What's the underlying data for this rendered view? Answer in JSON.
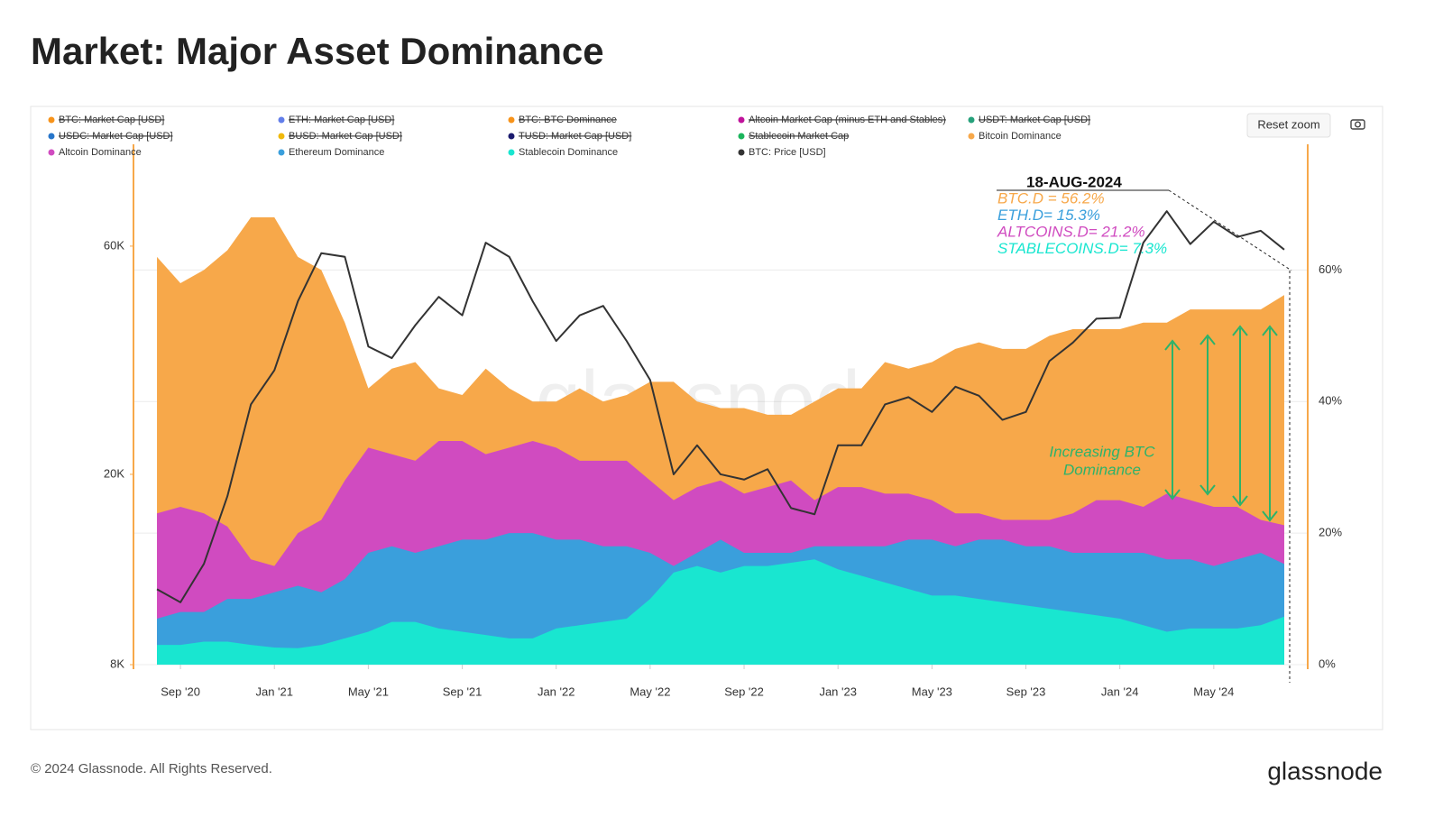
{
  "header": {
    "title": "Market: Major Asset Dominance"
  },
  "footer": {
    "copyright": "© 2024 Glassnode. All Rights Reserved.",
    "logo": "glassnode"
  },
  "toolbar": {
    "reset_zoom": "Reset zoom"
  },
  "chart_data": {
    "type": "area",
    "watermark": "glassnode",
    "x": [
      "2020-08",
      "2020-09",
      "2020-10",
      "2020-11",
      "2020-12",
      "2021-01",
      "2021-02",
      "2021-03",
      "2021-04",
      "2021-05",
      "2021-06",
      "2021-07",
      "2021-08",
      "2021-09",
      "2021-10",
      "2021-11",
      "2021-12",
      "2022-01",
      "2022-02",
      "2022-03",
      "2022-04",
      "2022-05",
      "2022-06",
      "2022-07",
      "2022-08",
      "2022-09",
      "2022-10",
      "2022-11",
      "2022-12",
      "2023-01",
      "2023-02",
      "2023-03",
      "2023-04",
      "2023-05",
      "2023-06",
      "2023-07",
      "2023-08",
      "2023-09",
      "2023-10",
      "2023-11",
      "2023-12",
      "2024-01",
      "2024-02",
      "2024-03",
      "2024-04",
      "2024-05",
      "2024-06",
      "2024-07",
      "2024-08"
    ],
    "xlim": [
      "2020-07",
      "2024-09"
    ],
    "xticks": [
      {
        "value": "2020-09",
        "label": "Sep '20"
      },
      {
        "value": "2021-01",
        "label": "Jan '21"
      },
      {
        "value": "2021-05",
        "label": "May '21"
      },
      {
        "value": "2021-09",
        "label": "Sep '21"
      },
      {
        "value": "2022-01",
        "label": "Jan '22"
      },
      {
        "value": "2022-05",
        "label": "May '22"
      },
      {
        "value": "2022-09",
        "label": "Sep '22"
      },
      {
        "value": "2023-01",
        "label": "Jan '23"
      },
      {
        "value": "2023-05",
        "label": "May '23"
      },
      {
        "value": "2023-09",
        "label": "Sep '23"
      },
      {
        "value": "2024-01",
        "label": "Jan '24"
      },
      {
        "value": "2024-05",
        "label": "May '24"
      }
    ],
    "ylim": [
      8000,
      86000
    ],
    "yscale": "log",
    "yticks": [
      {
        "value": 8000,
        "label": "8K"
      },
      {
        "value": 20000,
        "label": "20K"
      },
      {
        "value": 60000,
        "label": "60K"
      }
    ],
    "y2lim": [
      0,
      75
    ],
    "y2ticks": [
      {
        "value": 0,
        "label": "0%"
      },
      {
        "value": 20,
        "label": "20%"
      },
      {
        "value": 40,
        "label": "40%"
      },
      {
        "value": 60,
        "label": "60%"
      }
    ],
    "grid": true,
    "hidden_series": [
      {
        "name": "BTC: Market Cap [USD]",
        "color": "#f7931a"
      },
      {
        "name": "ETH: Market Cap [USD]",
        "color": "#627eea"
      },
      {
        "name": "BTC: BTC Dominance",
        "color": "#f7931a"
      },
      {
        "name": "Altcoin Market Cap (minus ETH and Stables)",
        "color": "#c0139b"
      },
      {
        "name": "USDT: Market Cap [USD]",
        "color": "#26a17b"
      },
      {
        "name": "USDC: Market Cap [USD]",
        "color": "#2775ca"
      },
      {
        "name": "BUSD: Market Cap [USD]",
        "color": "#f0b90b"
      },
      {
        "name": "TUSD: Market Cap [USD]",
        "color": "#1a1a6e"
      },
      {
        "name": "Stablecoin Market Cap",
        "color": "#1bb55c"
      }
    ],
    "series": [
      {
        "name": "Bitcoin Dominance",
        "color": "#f7a84a",
        "axis": "y2",
        "values": [
          62,
          58,
          60,
          63,
          68,
          68,
          62,
          60,
          52,
          42,
          45,
          46,
          42,
          41,
          45,
          42,
          40,
          40,
          42,
          40,
          41,
          43,
          43,
          40,
          39,
          39,
          38,
          38,
          40,
          42,
          42,
          46,
          45,
          46,
          48,
          49,
          48,
          48,
          50,
          51,
          51,
          51,
          52,
          52,
          54,
          54,
          54,
          54,
          56.2
        ]
      },
      {
        "name": "Altcoin Dominance",
        "color": "#d04bc0",
        "axis": "y2",
        "values": [
          23,
          24,
          23,
          21,
          16,
          15,
          20,
          22,
          28,
          33,
          32,
          31,
          34,
          34,
          32,
          33,
          34,
          33,
          31,
          31,
          31,
          28,
          25,
          27,
          28,
          26,
          27,
          28,
          25,
          27,
          27,
          26,
          26,
          25,
          23,
          23,
          22,
          22,
          22,
          23,
          25,
          25,
          24,
          26,
          25,
          24,
          24,
          22,
          21.2
        ]
      },
      {
        "name": "Ethereum Dominance",
        "color": "#3a9fdc",
        "axis": "y2",
        "values": [
          7,
          8,
          8,
          10,
          10,
          11,
          12,
          11,
          13,
          17,
          18,
          17,
          18,
          19,
          19,
          20,
          20,
          19,
          19,
          18,
          18,
          17,
          15,
          17,
          19,
          17,
          17,
          17,
          18,
          18,
          18,
          18,
          19,
          19,
          18,
          19,
          19,
          18,
          18,
          17,
          17,
          17,
          17,
          16,
          16,
          15,
          16,
          17,
          15.3
        ]
      },
      {
        "name": "Stablecoin Dominance",
        "color": "#19e6d0",
        "axis": "y2",
        "values": [
          3,
          3,
          3.5,
          3.5,
          3,
          2.6,
          2.5,
          3,
          4,
          5,
          6.5,
          6.5,
          5.5,
          5,
          4.5,
          4,
          4,
          5.5,
          6,
          6.5,
          7,
          10,
          14,
          15,
          14,
          15,
          15,
          15.5,
          16,
          14.5,
          13.5,
          12.5,
          11.5,
          10.5,
          10.5,
          10,
          9.5,
          9,
          8.5,
          8,
          7.5,
          7,
          6,
          5,
          5.5,
          5.5,
          5.5,
          6,
          7.3
        ]
      },
      {
        "name": "BTC: Price [USD]",
        "color": "#333333",
        "type": "line",
        "values": [
          11500,
          10800,
          13000,
          18000,
          28000,
          33000,
          46000,
          58000,
          57000,
          37000,
          35000,
          41000,
          47000,
          43000,
          61000,
          57000,
          46000,
          38000,
          43000,
          45000,
          38000,
          31500,
          20000,
          23000,
          20000,
          19500,
          20500,
          17000,
          16500,
          23000,
          23000,
          28000,
          29000,
          27000,
          30500,
          29200,
          26000,
          27000,
          34500,
          37700,
          42300,
          42500,
          61000,
          71000,
          60600,
          67500,
          62700,
          64600,
          59000
        ]
      }
    ],
    "annotations": {
      "date": "18-AUG-2024",
      "readings": [
        {
          "text": "BTC.D = 56.2%",
          "color": "#f7a84a"
        },
        {
          "text": "ETH.D= 15.3%",
          "color": "#3a9fdc"
        },
        {
          "text": "ALTCOINS.D= 21.2%",
          "color": "#d04bc0"
        },
        {
          "text": "STABLECOINS.D= 7.3%",
          "color": "#19e6d0"
        }
      ],
      "trend": [
        "Increasing BTC",
        "Dominance"
      ]
    }
  }
}
